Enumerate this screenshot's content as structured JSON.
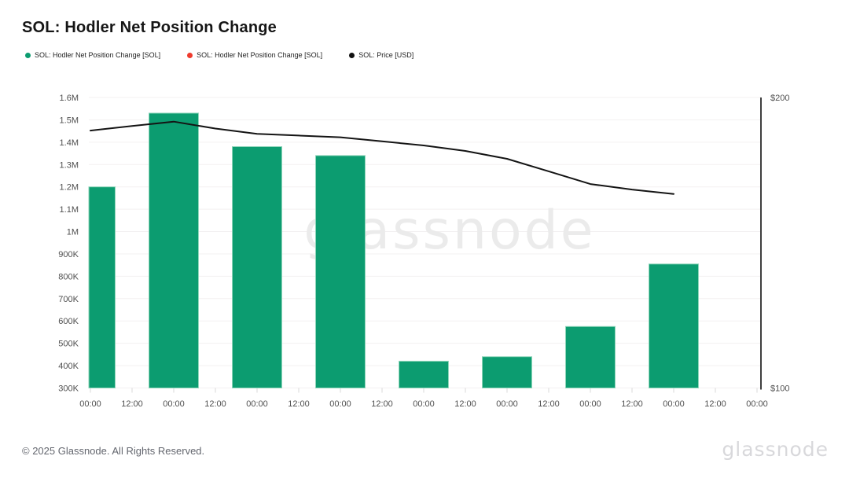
{
  "header": {
    "title": "SOL: Hodler Net Position Change"
  },
  "legend": {
    "items": [
      {
        "label": "SOL: Hodler Net Position Change [SOL]",
        "color": "#0c9c70"
      },
      {
        "label": "SOL: Hodler Net Position Change [SOL]",
        "color": "#ef3b2d"
      },
      {
        "label": "SOL: Price [USD]",
        "color": "#111111"
      }
    ]
  },
  "watermark": {
    "text": "glassnode"
  },
  "footer": {
    "copyright": "© 2025 Glassnode. All Rights Reserved.",
    "logo": "glassnode"
  },
  "chart_data": {
    "type": "bar",
    "overlay": "line",
    "title": "SOL: Hodler Net Position Change",
    "grid": "horizontal-only",
    "legend_position": "top-left",
    "x_tick_labels": [
      "00:00",
      "12:00",
      "00:00",
      "12:00",
      "00:00",
      "12:00",
      "00:00",
      "12:00",
      "00:00",
      "12:00",
      "00:00",
      "12:00",
      "00:00",
      "12:00",
      "00:00",
      "12:00",
      "00:00"
    ],
    "left_axis": {
      "min": 300000,
      "max": 1600000,
      "step": 100000,
      "tick_labels": [
        "300K",
        "400K",
        "500K",
        "600K",
        "700K",
        "800K",
        "900K",
        "1M",
        "1.1M",
        "1.2M",
        "1.3M",
        "1.4M",
        "1.5M",
        "1.6M"
      ]
    },
    "right_axis": {
      "min": 100,
      "max": 200,
      "ticks": [
        {
          "label": "$200",
          "value": 200
        },
        {
          "label": "$100",
          "value": 100
        }
      ]
    },
    "series": [
      {
        "name": "SOL: Hodler Net Position Change [SOL]",
        "type": "bar",
        "color": "#0c9c70",
        "edge_color": "#8fd6ba",
        "points": [
          {
            "tick": 0,
            "value": 1200000
          },
          {
            "tick": 2,
            "value": 1530000
          },
          {
            "tick": 4,
            "value": 1380000
          },
          {
            "tick": 6,
            "value": 1340000
          },
          {
            "tick": 8,
            "value": 420000
          },
          {
            "tick": 10,
            "value": 440000
          },
          {
            "tick": 12,
            "value": 575000
          },
          {
            "tick": 14,
            "value": 855000
          }
        ]
      },
      {
        "name": "SOL: Price [USD]",
        "type": "line",
        "color": "#141414",
        "points": [
          {
            "tick": 0,
            "value": 188.6
          },
          {
            "tick": 1,
            "value": 190.2
          },
          {
            "tick": 2,
            "value": 191.7
          },
          {
            "tick": 3,
            "value": 189.3
          },
          {
            "tick": 4,
            "value": 187.5
          },
          {
            "tick": 5,
            "value": 186.9
          },
          {
            "tick": 6,
            "value": 186.3
          },
          {
            "tick": 7,
            "value": 184.9
          },
          {
            "tick": 8,
            "value": 183.5
          },
          {
            "tick": 9,
            "value": 181.6
          },
          {
            "tick": 10,
            "value": 178.9
          },
          {
            "tick": 11,
            "value": 174.6
          },
          {
            "tick": 12,
            "value": 170.2
          },
          {
            "tick": 13,
            "value": 168.3
          },
          {
            "tick": 14,
            "value": 166.8
          }
        ]
      }
    ]
  }
}
